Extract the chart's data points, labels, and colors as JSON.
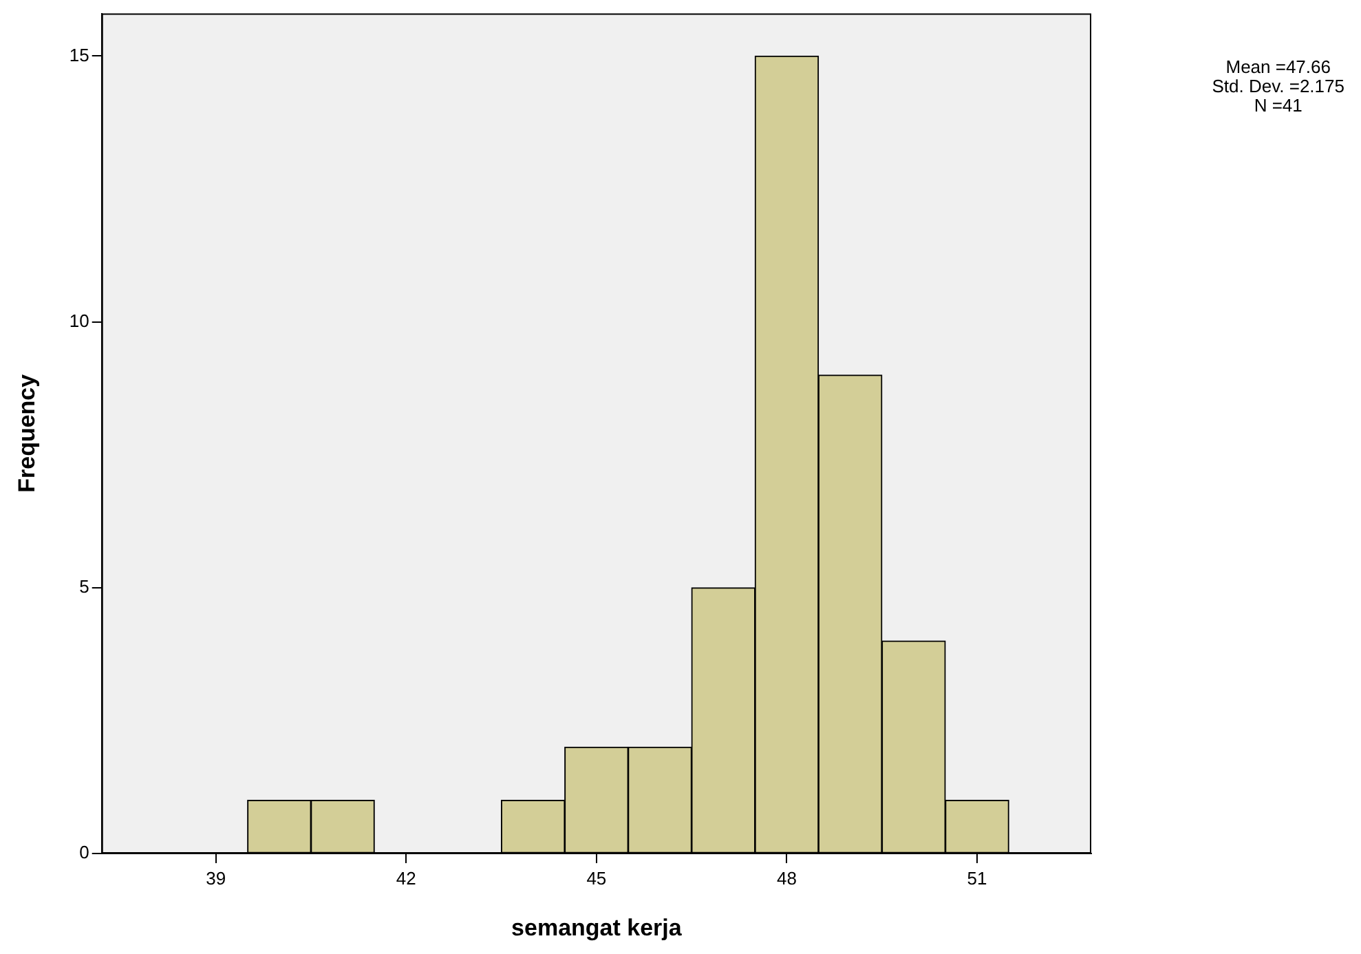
{
  "chart_data": {
    "type": "histogram",
    "xlabel": "semangat kerja",
    "ylabel": "Frequency",
    "bins": [
      39.5,
      40.5,
      41.5,
      42.5,
      43.5,
      44.5,
      45.5,
      46.5,
      47.5,
      48.5,
      49.5,
      50.5,
      51.5
    ],
    "values": [
      1,
      1,
      0,
      0,
      1,
      2,
      2,
      5,
      15,
      9,
      4,
      1
    ],
    "color": "#d3ce97",
    "xlim": [
      37.2,
      52.8
    ],
    "xticks": [
      39,
      42,
      45,
      48,
      51
    ],
    "ylim": [
      0,
      15.8
    ],
    "yticks": [
      0,
      5,
      10,
      15
    ],
    "grid": false,
    "legend": false,
    "annotations": [
      "Mean =47.66",
      "Std. Dev. =2.175",
      "N =41"
    ]
  }
}
